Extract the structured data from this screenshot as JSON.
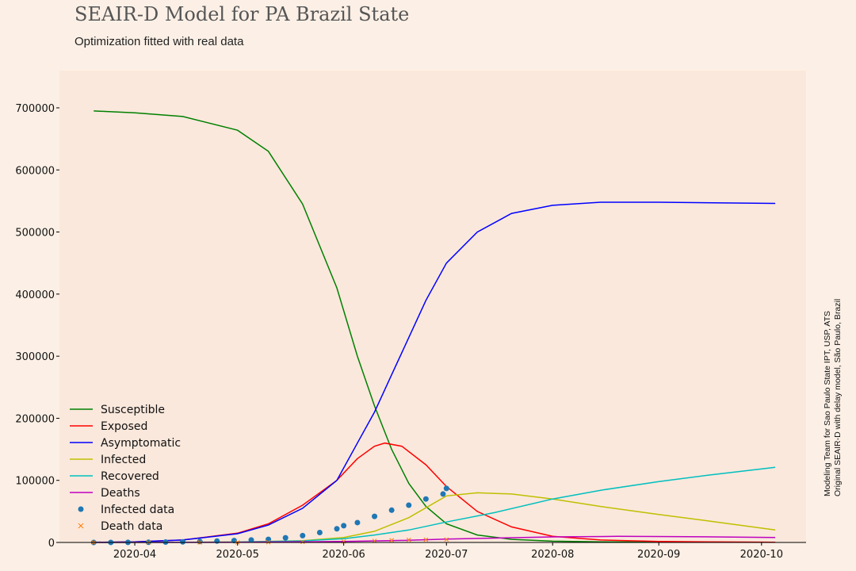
{
  "title": "SEAIR-D Model for PA Brazil State",
  "subtitle": "Optimization fitted with real data",
  "credit_line1": "Modeling Team for Sao Paulo State IPT, USP, ATS",
  "credit_line2": "Original SEAIR-D with delay model, São Paulo, Brazil",
  "colors": {
    "background": "#fcf0e6",
    "plot_area": "#fae8dc"
  },
  "chart_data": {
    "type": "line",
    "title": "SEAIR-D Model for PA Brazil State",
    "subtitle": "Optimization fitted with real data",
    "xlabel": "",
    "ylabel": "",
    "xlim": [
      "2020-03-10",
      "2020-10-14"
    ],
    "ylim": [
      0,
      760000
    ],
    "x_ticks": [
      "2020-04-01",
      "2020-05-01",
      "2020-06-01",
      "2020-07-01",
      "2020-08-01",
      "2020-09-01",
      "2020-10-01"
    ],
    "x_tick_labels": [
      "2020-04",
      "2020-05",
      "2020-06",
      "2020-07",
      "2020-08",
      "2020-09",
      "2020-10"
    ],
    "y_ticks": [
      0,
      100000,
      200000,
      300000,
      400000,
      500000,
      600000,
      700000
    ],
    "y_tick_labels": [
      "0",
      "100000",
      "200000",
      "300000",
      "400000",
      "500000",
      "600000",
      "700000"
    ],
    "grid": false,
    "legend_position": "bottom-left",
    "series": [
      {
        "name": "Susceptible",
        "color": "#008000",
        "kind": "line",
        "x": [
          "2020-03-20",
          "2020-04-01",
          "2020-04-15",
          "2020-05-01",
          "2020-05-10",
          "2020-05-20",
          "2020-05-30",
          "2020-06-05",
          "2020-06-10",
          "2020-06-15",
          "2020-06-20",
          "2020-06-25",
          "2020-07-01",
          "2020-07-10",
          "2020-07-20",
          "2020-08-01",
          "2020-08-15",
          "2020-09-01",
          "2020-10-05"
        ],
        "y": [
          695000,
          692000,
          686000,
          664000,
          630000,
          545000,
          410000,
          300000,
          220000,
          150000,
          95000,
          58000,
          30000,
          12000,
          5000,
          2000,
          1000,
          500,
          300
        ]
      },
      {
        "name": "Exposed",
        "color": "#ff0000",
        "kind": "line",
        "x": [
          "2020-03-20",
          "2020-04-01",
          "2020-04-15",
          "2020-05-01",
          "2020-05-10",
          "2020-05-20",
          "2020-05-30",
          "2020-06-05",
          "2020-06-10",
          "2020-06-13",
          "2020-06-18",
          "2020-06-25",
          "2020-07-01",
          "2020-07-10",
          "2020-07-20",
          "2020-08-01",
          "2020-08-15",
          "2020-09-01",
          "2020-10-05"
        ],
        "y": [
          200,
          1000,
          4000,
          15000,
          30000,
          60000,
          100000,
          135000,
          155000,
          160000,
          155000,
          125000,
          90000,
          50000,
          25000,
          10000,
          4000,
          1500,
          300
        ]
      },
      {
        "name": "Asymptomatic",
        "color": "#0000ff",
        "kind": "line",
        "x": [
          "2020-03-20",
          "2020-04-01",
          "2020-04-15",
          "2020-05-01",
          "2020-05-10",
          "2020-05-20",
          "2020-05-30",
          "2020-06-05",
          "2020-06-10",
          "2020-06-15",
          "2020-06-20",
          "2020-06-25",
          "2020-07-01",
          "2020-07-10",
          "2020-07-20",
          "2020-08-01",
          "2020-08-15",
          "2020-09-01",
          "2020-10-05"
        ],
        "y": [
          200,
          1000,
          4000,
          14000,
          28000,
          55000,
          100000,
          160000,
          210000,
          270000,
          330000,
          390000,
          450000,
          500000,
          530000,
          543000,
          548000,
          548000,
          546000
        ]
      },
      {
        "name": "Infected",
        "color": "#bfbf00",
        "kind": "line",
        "x": [
          "2020-03-20",
          "2020-04-15",
          "2020-05-01",
          "2020-05-20",
          "2020-06-01",
          "2020-06-10",
          "2020-06-20",
          "2020-07-01",
          "2020-07-10",
          "2020-07-20",
          "2020-08-01",
          "2020-08-15",
          "2020-09-01",
          "2020-09-15",
          "2020-10-05"
        ],
        "y": [
          0,
          300,
          800,
          3000,
          8000,
          18000,
          40000,
          75000,
          80000,
          78000,
          70000,
          58000,
          45000,
          35000,
          20000
        ]
      },
      {
        "name": "Recovered",
        "color": "#00bfbf",
        "kind": "line",
        "x": [
          "2020-03-20",
          "2020-04-15",
          "2020-05-01",
          "2020-05-20",
          "2020-06-01",
          "2020-06-10",
          "2020-06-20",
          "2020-07-01",
          "2020-07-15",
          "2020-08-01",
          "2020-08-15",
          "2020-09-01",
          "2020-09-15",
          "2020-10-05"
        ],
        "y": [
          0,
          200,
          600,
          2500,
          6000,
          12000,
          20000,
          33000,
          48000,
          70000,
          84000,
          98000,
          108000,
          121000
        ]
      },
      {
        "name": "Deaths",
        "color": "#bf00bf",
        "kind": "line",
        "x": [
          "2020-03-20",
          "2020-05-01",
          "2020-06-01",
          "2020-06-20",
          "2020-07-01",
          "2020-07-15",
          "2020-08-01",
          "2020-08-20",
          "2020-09-05",
          "2020-09-20",
          "2020-10-05"
        ],
        "y": [
          0,
          300,
          1500,
          3500,
          5500,
          7000,
          9000,
          9800,
          9500,
          8800,
          8000
        ]
      },
      {
        "name": "Infected data",
        "color": "#1f77b4",
        "kind": "scatter-dot",
        "x": [
          "2020-03-20",
          "2020-03-25",
          "2020-03-30",
          "2020-04-05",
          "2020-04-10",
          "2020-04-15",
          "2020-04-20",
          "2020-04-25",
          "2020-04-30",
          "2020-05-05",
          "2020-05-10",
          "2020-05-15",
          "2020-05-20",
          "2020-05-25",
          "2020-05-30",
          "2020-06-01",
          "2020-06-05",
          "2020-06-10",
          "2020-06-15",
          "2020-06-20",
          "2020-06-25",
          "2020-06-30",
          "2020-07-01"
        ],
        "y": [
          0,
          50,
          150,
          300,
          600,
          1000,
          1600,
          2300,
          3000,
          4000,
          5000,
          7500,
          11000,
          16000,
          22000,
          27000,
          32000,
          42000,
          52000,
          60000,
          70000,
          78000,
          87000
        ]
      },
      {
        "name": "Death data",
        "color": "#ff7f0e",
        "kind": "scatter-x",
        "x": [
          "2020-03-20",
          "2020-04-05",
          "2020-04-20",
          "2020-05-01",
          "2020-05-10",
          "2020-05-20",
          "2020-06-01",
          "2020-06-10",
          "2020-06-15",
          "2020-06-20",
          "2020-06-25",
          "2020-07-01"
        ],
        "y": [
          0,
          10,
          40,
          100,
          300,
          700,
          1500,
          2500,
          3500,
          4200,
          4500,
          4700
        ]
      }
    ]
  }
}
